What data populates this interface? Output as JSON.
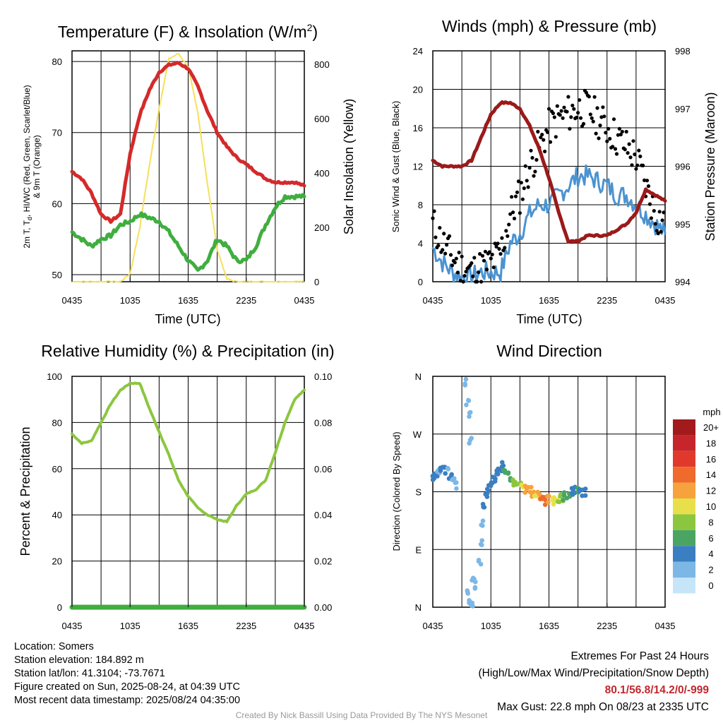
{
  "time_ticks": [
    "0435",
    "1035",
    "1635",
    "2235",
    "0435"
  ],
  "panels": {
    "temperature": {
      "title_main": "Temperature (F) & Insolation (W/m",
      "title_sup": "2",
      "title_end": ")",
      "xlabel": "Time (UTC)",
      "ylabel_line1": "2m T, T",
      "ylabel_sub": "d",
      "ylabel_rest": ", HI/WC (Red, Green, Scarlet/Blue)",
      "ylabel_line2": "& 9m T (Orange)",
      "y2label": "Solar Insolation (Yellow)",
      "yticks": [
        "50",
        "60",
        "70",
        "80"
      ],
      "y2ticks": [
        "0",
        "200",
        "400",
        "600",
        "800"
      ]
    },
    "winds": {
      "title": "Winds (mph) & Pressure (mb)",
      "xlabel": "Time (UTC)",
      "ylabel": "Sonic Wind & Gust (Blue, Black)",
      "y2label": "Station Pressure (Maroon)",
      "yticks": [
        "0",
        "4",
        "8",
        "12",
        "16",
        "20",
        "24"
      ],
      "y2ticks": [
        "994",
        "995",
        "996",
        "997",
        "998"
      ]
    },
    "humidity": {
      "title": "Relative Humidity (%) & Precipitation (in)",
      "ylabel": "Percent & Precipitation",
      "yticks": [
        "0",
        "20",
        "40",
        "60",
        "80",
        "100"
      ],
      "y2ticks": [
        "0.00",
        "0.02",
        "0.04",
        "0.06",
        "0.08",
        "0.10"
      ]
    },
    "direction": {
      "title": "Wind Direction",
      "ylabel": "Direction (Colored By Speed)",
      "yticks": [
        "N",
        "E",
        "S",
        "W",
        "N"
      ],
      "colorbar_title": "mph",
      "colorbar_labels": [
        "20+",
        "18",
        "16",
        "14",
        "12",
        "10",
        "8",
        "6",
        "4",
        "2",
        "0"
      ],
      "colorbar_colors": [
        "#a31a1c",
        "#c6262b",
        "#e0392c",
        "#ef6a2c",
        "#f7a23c",
        "#e8e04b",
        "#8cc63f",
        "#4aa564",
        "#3a7fc1",
        "#7cb7e6",
        "#c6e5f8"
      ]
    }
  },
  "footer": {
    "location": "Location: Somers",
    "elevation": "Station elevation: 184.892 m",
    "latlon": "Station lat/lon: 41.3104; -73.7671",
    "created": "Figure created on Sun, 2025-08-24, at 04:39 UTC",
    "recent": "Most recent data timestamp: 2025/08/24 04:35:00",
    "extremes_title": "Extremes For Past 24 Hours",
    "extremes_sub": "(High/Low/Max Wind/Precipitation/Snow Depth)",
    "extremes_values": "80.1/56.8/14.2/0/-999",
    "max_gust": "Max Gust: 22.8 mph On 08/23 at 2335 UTC",
    "credit": "Created By Nick Bassill Using Data Provided By The NYS Mesonet"
  },
  "colors": {
    "temperature": "#d42a2a",
    "heat_index": "#3fae3f",
    "insolation": "#f5e05a",
    "wind": "#4b93d1",
    "gust": "#000000",
    "pressure": "#9b1a1a",
    "humidity": "#8cc63f",
    "precip": "#3fae3f"
  },
  "chart_data": [
    {
      "type": "line",
      "name": "temperature_insolation",
      "x": [
        0,
        1,
        2,
        3,
        4,
        5,
        6,
        7,
        8,
        9,
        10,
        11,
        12,
        13,
        14,
        15,
        16,
        17,
        18,
        19,
        20,
        21,
        22,
        23,
        24
      ],
      "x_tick_labels": [
        "0435",
        "1035",
        "1635",
        "2235",
        "0435"
      ],
      "ylim": [
        49,
        81.5
      ],
      "y2lim": [
        0,
        850
      ],
      "series": [
        {
          "axis": "left",
          "values": [
            64.5,
            63.5,
            61.5,
            58.5,
            57.5,
            58.5,
            67,
            72.5,
            76,
            78.5,
            79.5,
            79.8,
            79,
            76.5,
            73,
            70,
            68,
            66.5,
            65.5,
            64.5,
            63.5,
            63,
            63,
            63,
            62.5
          ]
        },
        {
          "axis": "left",
          "values": [
            56,
            55,
            54,
            55,
            55.5,
            57,
            57.5,
            58.5,
            58,
            57.5,
            56,
            54,
            52,
            50.5,
            52,
            55,
            54,
            52,
            52,
            54,
            57,
            59.5,
            61,
            61,
            61
          ]
        },
        {
          "axis": "right",
          "values": [
            0,
            0,
            0,
            0,
            0,
            0,
            30,
            200,
            430,
            640,
            820,
            840,
            790,
            620,
            360,
            120,
            10,
            0,
            0,
            0,
            0,
            0,
            0,
            0,
            0
          ]
        }
      ]
    },
    {
      "type": "line",
      "name": "winds_pressure",
      "x": [
        0,
        1,
        2,
        3,
        4,
        5,
        6,
        7,
        8,
        9,
        10,
        11,
        12,
        13,
        14,
        15,
        16,
        17,
        18,
        19,
        20,
        21,
        22,
        23,
        24
      ],
      "x_tick_labels": [
        "0435",
        "1035",
        "1635",
        "2235",
        "0435"
      ],
      "ylim": [
        0,
        24
      ],
      "y2lim": [
        994,
        998
      ],
      "series": [
        {
          "axis": "left",
          "values": [
            3.5,
            2,
            1,
            0.5,
            0.5,
            1,
            1,
            1,
            4,
            5,
            7,
            8,
            8,
            9,
            10,
            11,
            11,
            10.5,
            10,
            9,
            9,
            8,
            7,
            6,
            5
          ]
        },
        {
          "axis": "left",
          "values": [
            6,
            4,
            2.5,
            1.5,
            1,
            1.5,
            2,
            3,
            7,
            9,
            12,
            14,
            16,
            17,
            17.5,
            18,
            18,
            17,
            16,
            15,
            14,
            13,
            10,
            7,
            6
          ]
        },
        {
          "axis": "right",
          "values": [
            996.1,
            996.0,
            996.0,
            996.0,
            996.1,
            996.5,
            996.9,
            997.1,
            997.1,
            997.0,
            996.7,
            996.3,
            995.8,
            995.2,
            994.7,
            994.7,
            994.8,
            994.8,
            994.8,
            994.9,
            995.0,
            995.2,
            995.6,
            995.5,
            995.4
          ]
        }
      ]
    },
    {
      "type": "line",
      "name": "humidity_precip",
      "x": [
        0,
        1,
        2,
        3,
        4,
        5,
        6,
        7,
        8,
        9,
        10,
        11,
        12,
        13,
        14,
        15,
        16,
        17,
        18,
        19,
        20,
        21,
        22,
        23,
        24
      ],
      "x_tick_labels": [
        "0435",
        "1035",
        "1635",
        "2235",
        "0435"
      ],
      "ylim": [
        0,
        100
      ],
      "y2lim": [
        0,
        0.1
      ],
      "series": [
        {
          "axis": "left",
          "values": [
            75,
            71,
            72,
            80,
            88,
            94,
            97,
            97,
            86,
            76,
            66,
            55,
            48,
            43,
            40,
            38,
            37,
            44,
            49,
            51,
            55,
            67,
            80,
            90,
            94
          ]
        },
        {
          "axis": "right",
          "values": [
            0,
            0,
            0,
            0,
            0,
            0,
            0,
            0,
            0,
            0,
            0,
            0,
            0,
            0,
            0,
            0,
            0,
            0,
            0,
            0,
            0,
            0,
            0,
            0,
            0
          ]
        }
      ]
    },
    {
      "type": "scatter",
      "name": "wind_direction",
      "x_tick_labels": [
        "0435",
        "1035",
        "1635",
        "2235",
        "0435"
      ],
      "ylim": [
        0,
        360
      ],
      "y_tick_labels": [
        "N",
        "E",
        "S",
        "W",
        "N"
      ],
      "points": [
        [
          0.0,
          200,
          3
        ],
        [
          0.3,
          205,
          3
        ],
        [
          0.6,
          210,
          2
        ],
        [
          0.9,
          215,
          3
        ],
        [
          1.2,
          213,
          3
        ],
        [
          1.5,
          212,
          2
        ],
        [
          1.8,
          205,
          3
        ],
        [
          2.1,
          200,
          2
        ],
        [
          2.4,
          190,
          2
        ],
        [
          3.4,
          350,
          1
        ],
        [
          3.6,
          320,
          1
        ],
        [
          3.8,
          300,
          1
        ],
        [
          3.9,
          260,
          1
        ],
        [
          3.7,
          20,
          1
        ],
        [
          3.9,
          8,
          1
        ],
        [
          4.1,
          5,
          1
        ],
        [
          4.4,
          35,
          1
        ],
        [
          4.2,
          45,
          1
        ],
        [
          4.8,
          70,
          2
        ],
        [
          5.0,
          100,
          2
        ],
        [
          5.1,
          130,
          2
        ],
        [
          5.3,
          160,
          3
        ],
        [
          5.5,
          175,
          3
        ],
        [
          5.7,
          185,
          4
        ],
        [
          6.0,
          195,
          4
        ],
        [
          6.3,
          200,
          4
        ],
        [
          6.5,
          208,
          4
        ],
        [
          6.7,
          212,
          4
        ],
        [
          7.0,
          222,
          3
        ],
        [
          7.2,
          215,
          4
        ],
        [
          7.4,
          210,
          5
        ],
        [
          7.7,
          205,
          6
        ],
        [
          8.0,
          200,
          6
        ],
        [
          8.3,
          195,
          7
        ],
        [
          8.6,
          192,
          8
        ],
        [
          9.0,
          190,
          8
        ],
        [
          9.3,
          186,
          10
        ],
        [
          9.6,
          184,
          11
        ],
        [
          10.0,
          182,
          11
        ],
        [
          10.3,
          178,
          12
        ],
        [
          10.6,
          176,
          10
        ],
        [
          11.0,
          174,
          12
        ],
        [
          11.3,
          170,
          13
        ],
        [
          11.6,
          166,
          14
        ],
        [
          12.0,
          168,
          12
        ],
        [
          12.3,
          165,
          10
        ],
        [
          12.7,
          167,
          9
        ],
        [
          13.0,
          169,
          8
        ],
        [
          13.3,
          171,
          7
        ],
        [
          13.6,
          173,
          6
        ],
        [
          14.0,
          176,
          5
        ],
        [
          14.3,
          180,
          4
        ],
        [
          14.6,
          184,
          4
        ],
        [
          15.0,
          182,
          5
        ],
        [
          15.3,
          178,
          4
        ],
        [
          15.6,
          180,
          3
        ]
      ]
    }
  ]
}
